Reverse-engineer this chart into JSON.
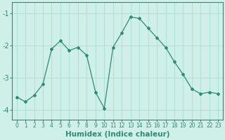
{
  "x": [
    0,
    1,
    2,
    3,
    4,
    5,
    6,
    7,
    8,
    9,
    10,
    11,
    12,
    13,
    14,
    15,
    16,
    17,
    18,
    19,
    20,
    21,
    22,
    23
  ],
  "y": [
    -3.6,
    -3.75,
    -3.55,
    -3.2,
    -2.1,
    -1.85,
    -2.15,
    -2.05,
    -2.3,
    -3.45,
    -3.95,
    -2.05,
    -1.6,
    -1.1,
    -1.15,
    -1.45,
    -1.75,
    -2.05,
    -2.5,
    -2.9,
    -3.35,
    -3.5,
    -3.45,
    -3.5
  ],
  "line_color": "#2e8b74",
  "marker": "D",
  "marker_size": 2.0,
  "bg_color": "#cef0e8",
  "grid_color": "#a8ddd5",
  "tick_color": "#2e8b74",
  "xlabel": "Humidex (Indice chaleur)",
  "xlabel_fontsize": 7.5,
  "ylabel_ticks": [
    -4,
    -3,
    -2,
    -1
  ],
  "ylim": [
    -4.3,
    -0.65
  ],
  "xlim": [
    -0.5,
    23.5
  ],
  "xtick_fontsize": 5.5,
  "ytick_fontsize": 7.0
}
